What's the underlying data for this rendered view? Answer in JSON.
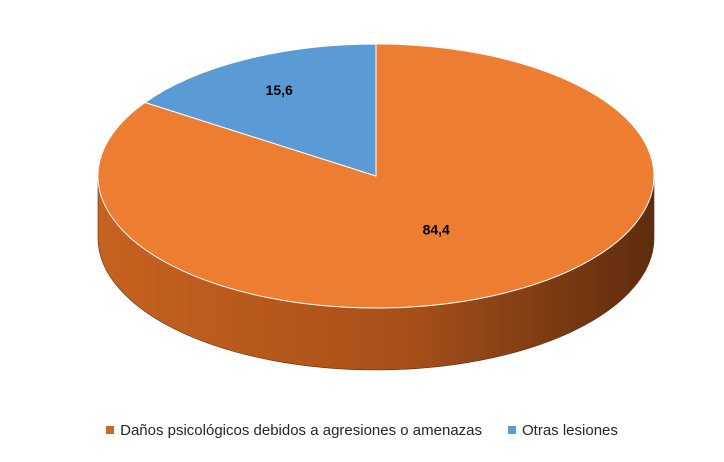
{
  "chart_data": {
    "type": "pie",
    "style": "3d",
    "categories": [
      "Daños psicológicos debidos a agresiones o amenazas",
      "Otras lesiones"
    ],
    "values": [
      84.4,
      15.6
    ],
    "data_labels": [
      "84,4",
      "15,6"
    ],
    "colors": [
      "#ED7D31",
      "#5B9BD5"
    ],
    "title": "",
    "legend_position": "bottom"
  }
}
